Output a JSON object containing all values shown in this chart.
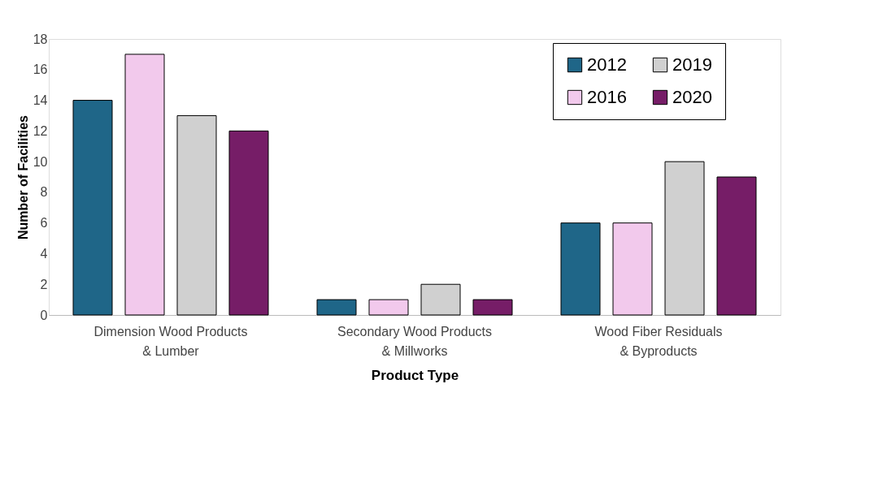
{
  "chart_data": {
    "type": "bar",
    "xlabel": "Product Type",
    "ylabel": "Number of Facilities",
    "categories": [
      "Dimension Wood Products\n& Lumber",
      "Secondary Wood Products\n& Millworks",
      "Wood Fiber Residuals\n& Byproducts"
    ],
    "series": [
      {
        "name": "2012",
        "color": "#1f6688",
        "values": [
          14,
          1,
          6
        ]
      },
      {
        "name": "2016",
        "color": "#f2c9ec",
        "values": [
          17,
          1,
          6
        ]
      },
      {
        "name": "2019",
        "color": "#d0d0d0",
        "values": [
          13,
          2,
          10
        ]
      },
      {
        "name": "2020",
        "color": "#761d67",
        "values": [
          12,
          1,
          9
        ]
      }
    ],
    "ylim": [
      0,
      18
    ],
    "yticks": [
      0,
      2,
      4,
      6,
      8,
      10,
      12,
      14,
      16,
      18
    ],
    "grid": false,
    "legend": "top right"
  }
}
